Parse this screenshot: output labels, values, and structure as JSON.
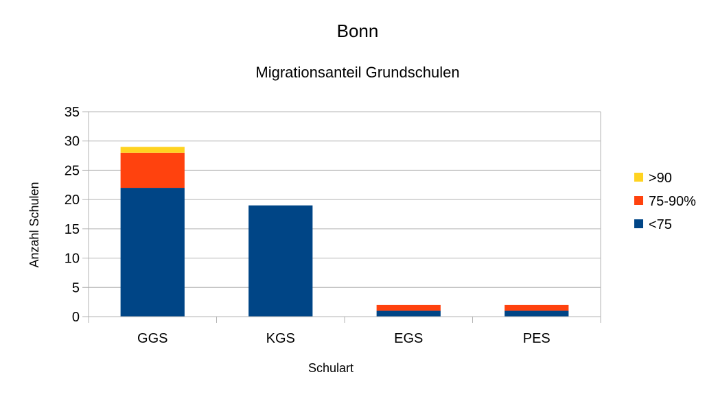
{
  "chart_data": {
    "type": "bar",
    "stacked": true,
    "title": "Bonn",
    "subtitle": "Migrationsanteil Grundschulen",
    "xlabel": "Schulart",
    "ylabel": "Anzahl Schulen",
    "categories": [
      "GGS",
      "KGS",
      "EGS",
      "PES"
    ],
    "series": [
      {
        "name": "<75",
        "color": "#004586",
        "values": [
          22,
          19,
          1,
          1
        ]
      },
      {
        "name": "75-90%",
        "color": "#ff420e",
        "values": [
          6,
          0,
          1,
          1
        ]
      },
      {
        "name": ">90",
        "color": "#ffd320",
        "values": [
          1,
          0,
          0,
          0
        ]
      }
    ],
    "ylim": [
      0,
      35
    ],
    "yticks": [
      "0",
      "5",
      "10",
      "15",
      "20",
      "25",
      "30",
      "35"
    ],
    "grid": true,
    "legend_position": "right",
    "legend_order": [
      ">90",
      "75-90%",
      "<75"
    ],
    "grid_color": "#b3b3b3"
  }
}
